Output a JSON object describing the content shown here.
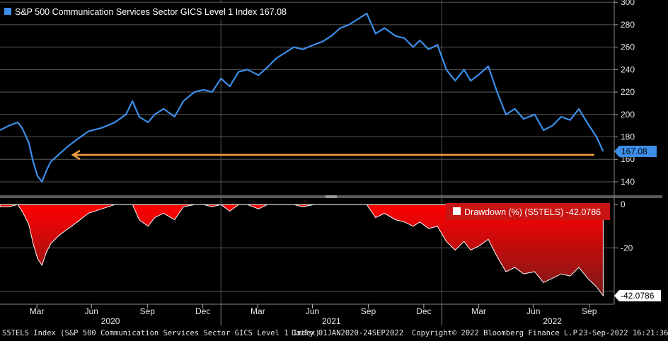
{
  "chart_data": [
    {
      "type": "line",
      "title": "S&P 500 Communication Services Sector GICS Level 1 Index",
      "legend_label": "S&P 500 Communication Services Sector GICS Level 1 Index 167.08",
      "last_value_label": "167.08",
      "last_value": 167.08,
      "ylim": [
        128,
        302
      ],
      "yticks": [
        140,
        160,
        180,
        200,
        220,
        240,
        260,
        280,
        300
      ],
      "ytick_labels": [
        "140",
        "160",
        "180",
        "200",
        "220",
        "240",
        "260",
        "280",
        "300"
      ],
      "grid": true,
      "series_color": "#3d8ee8",
      "annotation": {
        "type": "arrow",
        "color": "#f2a33a",
        "y": 164,
        "from_x": 2022.69,
        "to_x": 2020.33
      },
      "x": [
        2020.0,
        2020.04,
        2020.08,
        2020.1,
        2020.13,
        2020.15,
        2020.17,
        2020.19,
        2020.21,
        2020.23,
        2020.27,
        2020.31,
        2020.35,
        2020.4,
        2020.46,
        2020.52,
        2020.57,
        2020.6,
        2020.63,
        2020.67,
        2020.7,
        2020.74,
        2020.79,
        2020.83,
        2020.88,
        2020.92,
        2020.96,
        2021.0,
        2021.04,
        2021.08,
        2021.12,
        2021.17,
        2021.21,
        2021.25,
        2021.29,
        2021.33,
        2021.37,
        2021.42,
        2021.46,
        2021.5,
        2021.54,
        2021.58,
        2021.62,
        2021.66,
        2021.7,
        2021.74,
        2021.79,
        2021.83,
        2021.87,
        2021.9,
        2021.94,
        2021.98,
        2022.02,
        2022.06,
        2022.1,
        2022.13,
        2022.17,
        2022.21,
        2022.25,
        2022.29,
        2022.33,
        2022.37,
        2022.42,
        2022.46,
        2022.5,
        2022.54,
        2022.58,
        2022.62,
        2022.66,
        2022.7,
        2022.73
      ],
      "values": [
        186,
        190,
        193,
        188,
        175,
        158,
        145,
        140,
        150,
        158,
        165,
        172,
        178,
        185,
        188,
        193,
        200,
        212,
        198,
        193,
        200,
        205,
        198,
        212,
        220,
        222,
        220,
        232,
        225,
        238,
        240,
        235,
        242,
        250,
        255,
        260,
        258,
        262,
        265,
        270,
        277,
        280,
        285,
        290,
        272,
        277,
        270,
        268,
        260,
        266,
        258,
        262,
        240,
        230,
        240,
        230,
        236,
        243,
        220,
        200,
        205,
        196,
        200,
        186,
        190,
        198,
        195,
        205,
        192,
        180,
        167.08
      ],
      "x_tick_positions": [
        2020.167,
        2020.414,
        2020.667,
        2020.918,
        2021.167,
        2021.414,
        2021.667,
        2021.918,
        2022.167,
        2022.414,
        2022.667
      ],
      "x_tick_labels": [
        "Mar",
        "Jun",
        "Sep",
        "Dec",
        "Mar",
        "Jun",
        "Sep",
        "Dec",
        "Mar",
        "Jun",
        "Sep"
      ],
      "year_labels": [
        "2020",
        "2021",
        "2022"
      ],
      "year_positions": [
        2020.5,
        2021.5,
        2022.5
      ],
      "year_dividers": [
        2021.0,
        2022.0
      ]
    },
    {
      "type": "area",
      "title": "Drawdown (%) (S5TELS)",
      "legend_label": "Drawdown (%) (S5TELS) -42.0786",
      "last_value_label": "-42.0786",
      "last_value": -42.0786,
      "ylim": [
        -46,
        3
      ],
      "yticks": [
        0,
        -20,
        -40
      ],
      "ytick_labels": [
        "0",
        "-20",
        "-40"
      ],
      "fill_top_color": "#ff0000",
      "fill_bottom_color": "#7a1a1a",
      "legend_bg": "#c81414",
      "x": [
        2020.0,
        2020.04,
        2020.08,
        2020.1,
        2020.13,
        2020.15,
        2020.17,
        2020.19,
        2020.21,
        2020.23,
        2020.27,
        2020.31,
        2020.35,
        2020.4,
        2020.46,
        2020.52,
        2020.57,
        2020.6,
        2020.63,
        2020.67,
        2020.7,
        2020.74,
        2020.79,
        2020.83,
        2020.88,
        2020.92,
        2020.96,
        2021.0,
        2021.04,
        2021.08,
        2021.12,
        2021.17,
        2021.21,
        2021.25,
        2021.29,
        2021.33,
        2021.37,
        2021.42,
        2021.46,
        2021.5,
        2021.54,
        2021.58,
        2021.62,
        2021.66,
        2021.7,
        2021.74,
        2021.79,
        2021.83,
        2021.87,
        2021.9,
        2021.94,
        2021.98,
        2022.02,
        2022.06,
        2022.1,
        2022.13,
        2022.17,
        2022.21,
        2022.25,
        2022.29,
        2022.33,
        2022.37,
        2022.42,
        2022.46,
        2022.5,
        2022.54,
        2022.58,
        2022.62,
        2022.66,
        2022.7,
        2022.73
      ],
      "values": [
        -1,
        -1,
        0,
        -3,
        -9,
        -18,
        -25,
        -28,
        -22,
        -18,
        -14,
        -11,
        -8,
        -4,
        -2,
        0,
        0,
        0,
        -7,
        -10,
        -6,
        -4,
        -7,
        -1,
        0,
        0,
        -1,
        0,
        -3,
        0,
        0,
        -2,
        0,
        0,
        0,
        0,
        -1,
        0,
        0,
        0,
        0,
        0,
        0,
        0,
        -6,
        -4,
        -7,
        -8,
        -10,
        -8,
        -11,
        -10,
        -17,
        -21,
        -17,
        -21,
        -19,
        -16,
        -24,
        -31,
        -29,
        -32,
        -31,
        -36,
        -34,
        -32,
        -33,
        -29,
        -34,
        -38,
        -42.0786
      ]
    }
  ],
  "footer": {
    "left": "S5TELS Index (S&P 500 Communication Services Sector GICS Level 1 Index)",
    "middle": "Daily 01JAN2020-24SEP2022",
    "copyright": "Copyright© 2022 Bloomberg Finance L.P.",
    "timestamp": "23-Sep-2022 16:21:36"
  }
}
